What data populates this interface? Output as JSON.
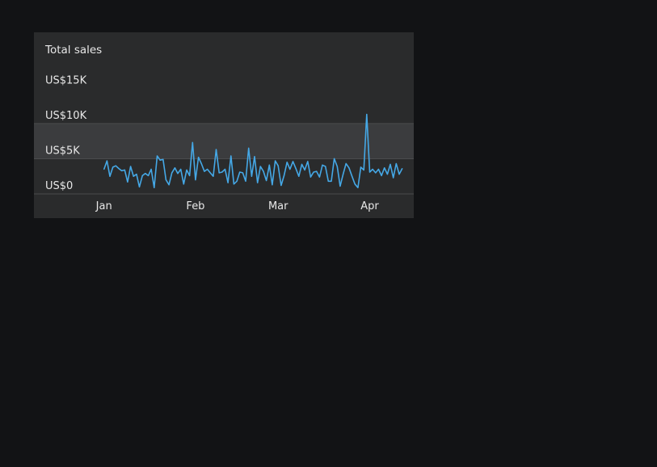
{
  "colors": {
    "page_background": "#121315",
    "card_background": "#2a2b2c",
    "highlight_band": "#3b3c3e",
    "gridline": "#4a4b4d",
    "line": "#45a8e6",
    "text": "#e8e8e8"
  },
  "chart_data": {
    "type": "line",
    "title": "Total sales",
    "xlabel": "",
    "ylabel": "",
    "ylim": [
      0,
      15000
    ],
    "y_ticks": [
      {
        "value": 15000,
        "label": "US$15K"
      },
      {
        "value": 10000,
        "label": "US$10K"
      },
      {
        "value": 5000,
        "label": "US$5K"
      },
      {
        "value": 0,
        "label": "US$0"
      }
    ],
    "x_ticks": [
      {
        "day": 1,
        "label": "Jan"
      },
      {
        "day": 32,
        "label": "Feb"
      },
      {
        "day": 60,
        "label": "Mar"
      },
      {
        "day": 91,
        "label": "Apr"
      }
    ],
    "x_range": [
      1,
      98
    ],
    "grid": true,
    "legend": "none",
    "highlight_band": [
      5000,
      10000
    ],
    "series": [
      {
        "values": [
          3500,
          4700,
          2500,
          3800,
          4000,
          3600,
          3300,
          3400,
          1700,
          3900,
          2500,
          2800,
          1000,
          2600,
          2900,
          2600,
          3500,
          900,
          5400,
          4800,
          4900,
          2000,
          1300,
          3000,
          3700,
          2900,
          3500,
          1400,
          3400,
          2600,
          7300,
          2000,
          5200,
          4300,
          3200,
          3500,
          3000,
          2500,
          6300,
          3000,
          3100,
          3500,
          1600,
          5400,
          1400,
          1800,
          3100,
          3000,
          1800,
          6500,
          2500,
          5300,
          1600,
          3900,
          3200,
          1900,
          4100,
          1300,
          4700,
          4000,
          1200,
          2600,
          4500,
          3500,
          4600,
          3600,
          2500,
          4200,
          3400,
          4600,
          2400,
          3100,
          3200,
          2400,
          4100,
          3900,
          1800,
          1800,
          5000,
          3900,
          1100,
          2800,
          4300,
          3700,
          2500,
          1400,
          900,
          3800,
          3400,
          11300,
          3100,
          3500,
          3000,
          3500,
          2600,
          3700,
          2800,
          4200,
          2300,
          4300,
          2800,
          3600
        ]
      }
    ]
  }
}
